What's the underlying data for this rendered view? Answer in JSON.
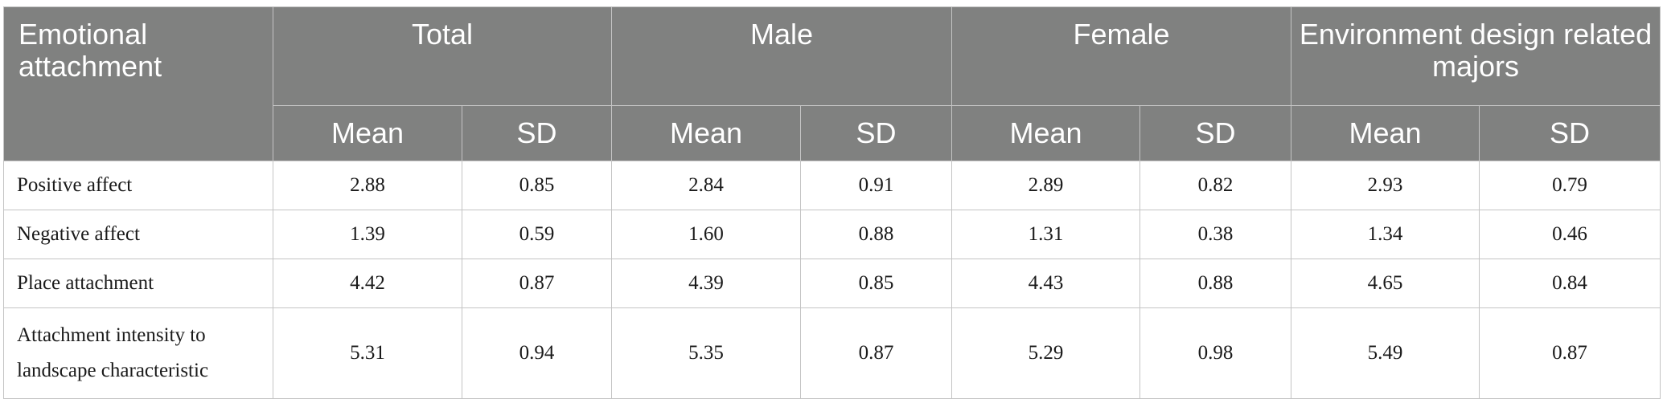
{
  "table": {
    "corner_header": "Emotional attachment",
    "groups": [
      "Total",
      "Male",
      "Female",
      "Environment design related majors"
    ],
    "sub_headers": [
      "Mean",
      "SD",
      "Mean",
      "SD",
      "Mean",
      "SD",
      "Mean",
      "SD"
    ],
    "rows": [
      {
        "label": "Positive affect",
        "values": [
          "2.88",
          "0.85",
          "2.84",
          "0.91",
          "2.89",
          "0.82",
          "2.93",
          "0.79"
        ]
      },
      {
        "label": "Negative affect",
        "values": [
          "1.39",
          "0.59",
          "1.60",
          "0.88",
          "1.31",
          "0.38",
          "1.34",
          "0.46"
        ]
      },
      {
        "label": "Place attachment",
        "values": [
          "4.42",
          "0.87",
          "4.39",
          "0.85",
          "4.43",
          "0.88",
          "4.65",
          "0.84"
        ]
      },
      {
        "label": "Attachment intensity to landscape characteristic",
        "values": [
          "5.31",
          "0.94",
          "5.35",
          "0.87",
          "5.29",
          "0.98",
          "5.49",
          "0.87"
        ]
      }
    ]
  }
}
